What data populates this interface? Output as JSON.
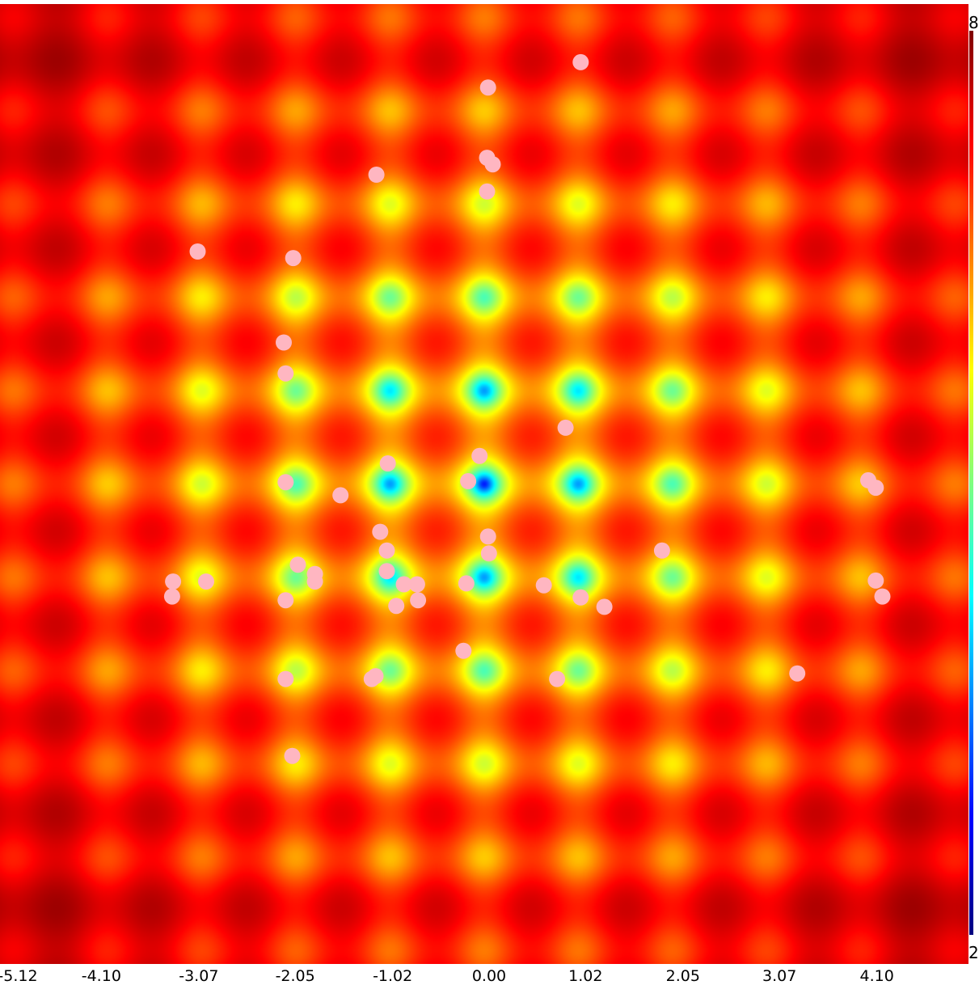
{
  "chart_data": {
    "type": "heatmap",
    "title": "",
    "xlabel": "",
    "ylabel": "",
    "xlim": [
      -5.12,
      5.12
    ],
    "ylim": [
      -5.12,
      5.12
    ],
    "x_tick_labels": [
      "-5.12",
      "-4.10",
      "-3.07",
      "-2.05",
      "-1.02",
      "0.00",
      "1.02",
      "2.05",
      "3.07",
      "4.10"
    ],
    "x_tick_values": [
      -5.12,
      -4.1,
      -3.07,
      -2.05,
      -1.02,
      0.0,
      1.02,
      2.05,
      3.07,
      4.1
    ],
    "colorbar": {
      "top_label": "8",
      "bottom_label": "2",
      "colormap": "jet"
    },
    "surface": "rastrigin-like periodic landscape, minimum at (0,0)",
    "colors": {
      "points": "#ffb6c1"
    },
    "series": [
      {
        "type": "scatter",
        "points": [
          [
            1.02,
            4.5
          ],
          [
            0.04,
            4.23
          ],
          [
            0.03,
            3.48
          ],
          [
            0.09,
            3.41
          ],
          [
            -1.14,
            3.3
          ],
          [
            0.03,
            3.12
          ],
          [
            -3.03,
            2.48
          ],
          [
            -2.02,
            2.41
          ],
          [
            -2.12,
            1.51
          ],
          [
            -2.1,
            1.18
          ],
          [
            0.86,
            0.6
          ],
          [
            -0.05,
            0.3
          ],
          [
            -1.02,
            0.22
          ],
          [
            -0.17,
            0.03
          ],
          [
            4.06,
            0.04
          ],
          [
            4.14,
            -0.04
          ],
          [
            -1.52,
            -0.12
          ],
          [
            -2.1,
            0.02
          ],
          [
            0.04,
            -0.56
          ],
          [
            -1.1,
            -0.51
          ],
          [
            -1.03,
            -0.71
          ],
          [
            1.88,
            -0.71
          ],
          [
            0.05,
            -0.74
          ],
          [
            -1.03,
            -0.93
          ],
          [
            -1.97,
            -0.86
          ],
          [
            -1.79,
            -0.96
          ],
          [
            -1.79,
            -1.04
          ],
          [
            -2.94,
            -1.04
          ],
          [
            -3.29,
            -1.04
          ],
          [
            -3.3,
            -1.2
          ],
          [
            -0.85,
            -1.07
          ],
          [
            -0.71,
            -1.07
          ],
          [
            -0.19,
            -1.06
          ],
          [
            0.63,
            -1.08
          ],
          [
            1.02,
            -1.21
          ],
          [
            -0.7,
            -1.24
          ],
          [
            -0.93,
            -1.3
          ],
          [
            -2.1,
            -1.24
          ],
          [
            1.27,
            -1.31
          ],
          [
            4.14,
            -1.03
          ],
          [
            4.21,
            -1.2
          ],
          [
            -0.22,
            -1.78
          ],
          [
            -1.15,
            -2.05
          ],
          [
            -1.19,
            -2.08
          ],
          [
            0.77,
            -2.08
          ],
          [
            3.31,
            -2.02
          ],
          [
            -2.1,
            -2.08
          ],
          [
            -2.03,
            -2.9
          ]
        ]
      }
    ]
  }
}
